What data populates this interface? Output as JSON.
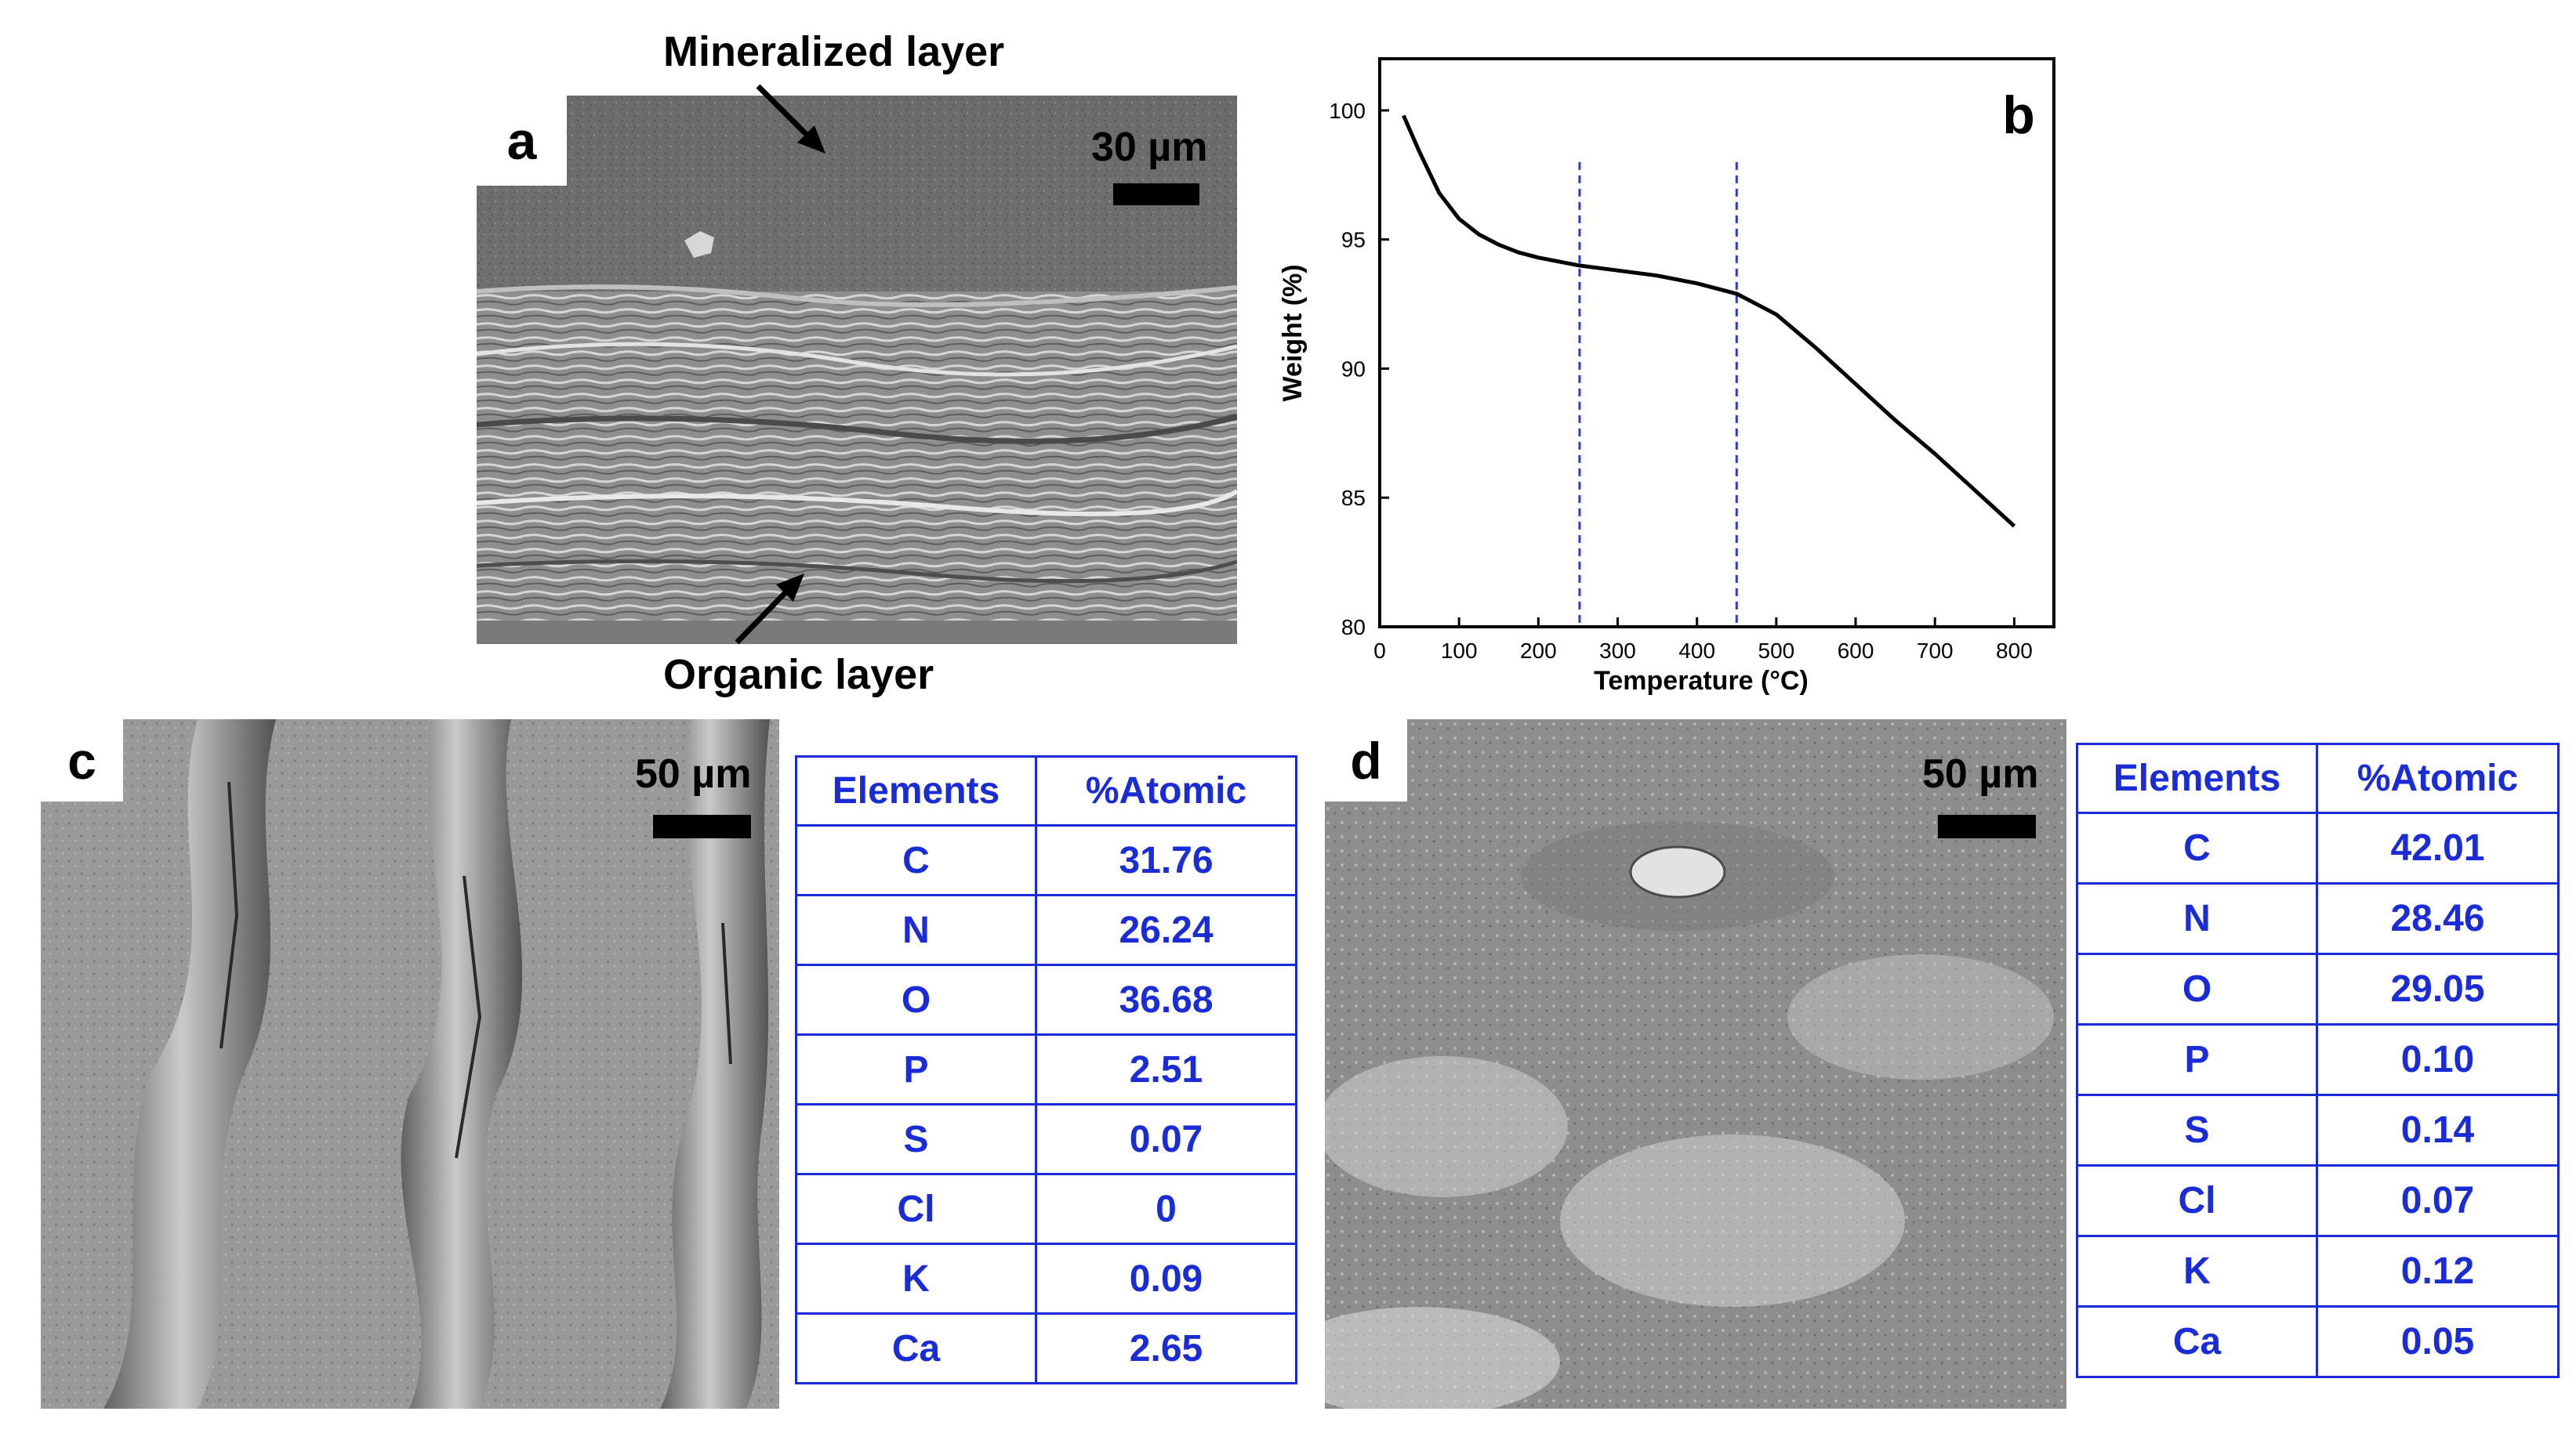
{
  "panel_a": {
    "letter": "a",
    "scale_label": "30 µm",
    "top_annotation": "Mineralized layer",
    "bottom_annotation": "Organic layer"
  },
  "panel_b": {
    "letter": "b"
  },
  "panel_c": {
    "letter": "c",
    "scale_label": "50 µm",
    "table": {
      "headers": [
        "Elements",
        "%Atomic"
      ],
      "rows": [
        [
          "C",
          "31.76"
        ],
        [
          "N",
          "26.24"
        ],
        [
          "O",
          "36.68"
        ],
        [
          "P",
          "2.51"
        ],
        [
          "S",
          "0.07"
        ],
        [
          "Cl",
          "0"
        ],
        [
          "K",
          "0.09"
        ],
        [
          "Ca",
          "2.65"
        ]
      ]
    }
  },
  "panel_d": {
    "letter": "d",
    "scale_label": "50 µm",
    "table": {
      "headers": [
        "Elements",
        "%Atomic"
      ],
      "rows": [
        [
          "C",
          "42.01"
        ],
        [
          "N",
          "28.46"
        ],
        [
          "O",
          "29.05"
        ],
        [
          "P",
          "0.10"
        ],
        [
          "S",
          "0.14"
        ],
        [
          "Cl",
          "0.07"
        ],
        [
          "K",
          "0.12"
        ],
        [
          "Ca",
          "0.05"
        ]
      ]
    }
  },
  "chart_data": {
    "type": "line",
    "xlabel": "Temperature (°C)",
    "ylabel": "Weight (%)",
    "xlim": [
      0,
      850
    ],
    "ylim": [
      80,
      102
    ],
    "xticks": [
      0,
      100,
      200,
      300,
      400,
      500,
      600,
      700,
      800
    ],
    "yticks": [
      80,
      85,
      90,
      95,
      100
    ],
    "grid": false,
    "series": [
      {
        "color": "#000000",
        "x": [
          30,
          50,
          75,
          100,
          125,
          150,
          175,
          200,
          250,
          300,
          350,
          400,
          450,
          500,
          550,
          600,
          650,
          700,
          750,
          800
        ],
        "y": [
          99.8,
          98.4,
          96.8,
          95.8,
          95.2,
          94.8,
          94.5,
          94.3,
          94.0,
          93.8,
          93.6,
          93.3,
          92.9,
          92.1,
          90.8,
          89.4,
          88.0,
          86.7,
          85.3,
          83.9
        ]
      }
    ],
    "vlines": [
      {
        "x": 252,
        "color": "#2a3ad6",
        "style": "dashed"
      },
      {
        "x": 450,
        "color": "#2a3ad6",
        "style": "dashed"
      }
    ]
  }
}
